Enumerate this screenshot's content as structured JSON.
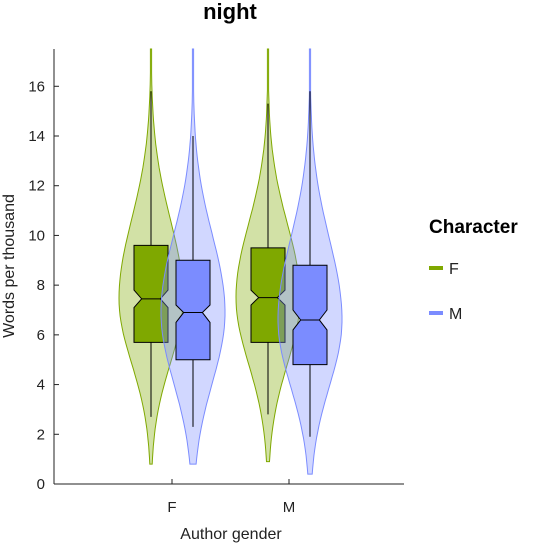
{
  "chart_data": {
    "type": "violin",
    "title": "night",
    "xlabel": "Author gender",
    "ylabel": "Words per thousand",
    "ylim": [
      0,
      17.5
    ],
    "yticks": [
      0,
      2,
      4,
      6,
      8,
      10,
      12,
      14,
      16
    ],
    "categories": [
      "F",
      "M"
    ],
    "legend": {
      "title": "Character",
      "placement": "right"
    },
    "series": [
      {
        "name": "F",
        "color": "#7fa800",
        "box_color": "#7fa800",
        "groups": [
          {
            "author": "F",
            "violin_min": 0.8,
            "violin_max": 17.5,
            "whisker_low": 2.7,
            "whisker_high": 15.8,
            "q1": 5.7,
            "median": 7.45,
            "q3": 9.6,
            "notch_low": 7.1,
            "notch_high": 7.8
          },
          {
            "author": "M",
            "violin_min": 0.9,
            "violin_max": 17.5,
            "whisker_low": 2.8,
            "whisker_high": 15.3,
            "q1": 5.7,
            "median": 7.5,
            "q3": 9.5,
            "notch_low": 7.2,
            "notch_high": 7.8
          }
        ]
      },
      {
        "name": "M",
        "color": "#7b8cff",
        "box_color": "#7b8cff",
        "groups": [
          {
            "author": "F",
            "violin_min": 0.8,
            "violin_max": 17.5,
            "whisker_low": 2.3,
            "whisker_high": 14.0,
            "q1": 5.0,
            "median": 6.9,
            "q3": 9.0,
            "notch_low": 6.5,
            "notch_high": 7.2
          },
          {
            "author": "M",
            "violin_min": 0.4,
            "violin_max": 17.5,
            "whisker_low": 1.9,
            "whisker_high": 15.8,
            "q1": 4.8,
            "median": 6.6,
            "q3": 8.8,
            "notch_low": 6.2,
            "notch_high": 7.0
          }
        ]
      }
    ],
    "grid": false
  }
}
